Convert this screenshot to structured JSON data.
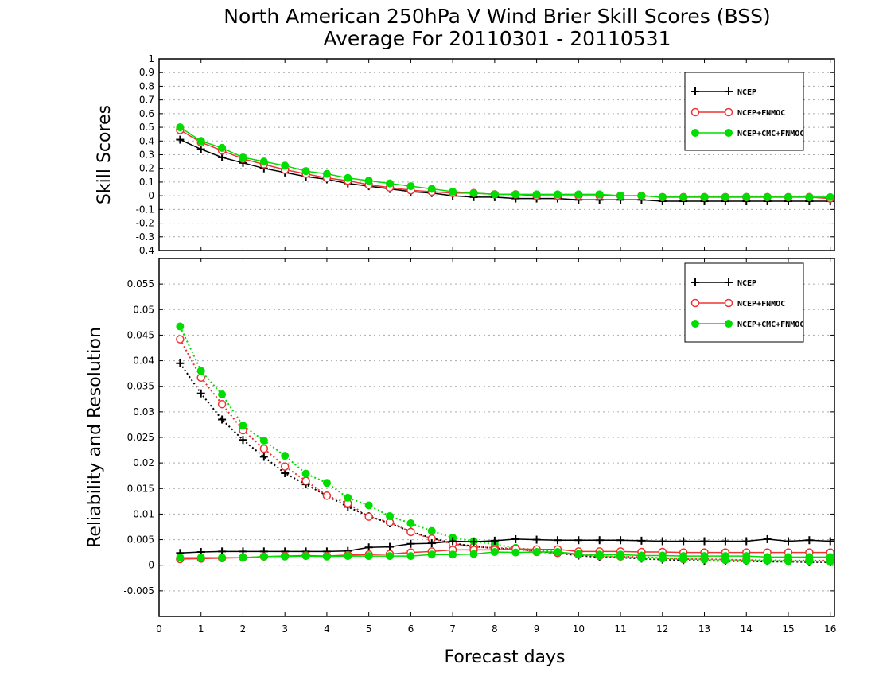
{
  "title_line1": "North American 250hPa V Wind Brier Skill Scores (BSS)",
  "title_line2": "Average For 20110301 - 20110531",
  "colors": {
    "NCEP": "#000000",
    "NCEP+FNMOC": "#ee3333",
    "NCEP+CMC+FNMOC": "#00dd00",
    "grid": "#aaaaaa"
  },
  "chart_data": [
    {
      "type": "line",
      "ylabel": "Skill Scores",
      "xlabel": "",
      "xlim": [
        0,
        16.1
      ],
      "ylim": [
        -0.4,
        1
      ],
      "xticks": [
        "0",
        "1",
        "2",
        "3",
        "4",
        "5",
        "6",
        "7",
        "8",
        "9",
        "10",
        "11",
        "12",
        "13",
        "14",
        "15",
        "16"
      ],
      "yticks": [
        "1",
        "0.9",
        "0.8",
        "0.7",
        "0.6",
        "0.5",
        "0.4",
        "0.3",
        "0.2",
        "0.1",
        "0",
        "-0.1",
        "-0.2",
        "-0.3",
        "-0.4"
      ],
      "grid": true,
      "legend_position": "top-right",
      "legend": [
        "NCEP",
        "NCEP+FNMOC",
        "NCEP+CMC+FNMOC"
      ],
      "x": [
        0.5,
        1,
        1.5,
        2,
        2.5,
        3,
        3.5,
        4,
        4.5,
        5,
        5.5,
        6,
        6.5,
        7,
        7.5,
        8,
        8.5,
        9,
        9.5,
        10,
        10.5,
        11,
        11.5,
        12,
        12.5,
        13,
        13.5,
        14,
        14.5,
        15,
        15.5,
        16
      ],
      "series": [
        {
          "name": "NCEP",
          "marker": "plus",
          "style": "solid",
          "values": [
            0.41,
            0.34,
            0.28,
            0.24,
            0.2,
            0.17,
            0.14,
            0.12,
            0.09,
            0.07,
            0.05,
            0.03,
            0.02,
            0.0,
            -0.01,
            -0.01,
            -0.02,
            -0.02,
            -0.02,
            -0.03,
            -0.03,
            -0.03,
            -0.03,
            -0.04,
            -0.04,
            -0.04,
            -0.04,
            -0.04,
            -0.04,
            -0.04,
            -0.04,
            -0.04
          ]
        },
        {
          "name": "NCEP+FNMOC",
          "marker": "open-circle",
          "style": "solid",
          "values": [
            0.48,
            0.39,
            0.33,
            0.27,
            0.23,
            0.19,
            0.16,
            0.13,
            0.11,
            0.08,
            0.06,
            0.04,
            0.03,
            0.02,
            0.02,
            0.01,
            0.01,
            0.0,
            0.0,
            0.0,
            0.0,
            0.0,
            0.0,
            -0.01,
            -0.01,
            -0.01,
            -0.01,
            -0.01,
            -0.01,
            -0.01,
            -0.01,
            -0.02
          ]
        },
        {
          "name": "NCEP+CMC+FNMOC",
          "marker": "filled-circle",
          "style": "solid",
          "values": [
            0.5,
            0.4,
            0.35,
            0.28,
            0.25,
            0.22,
            0.18,
            0.16,
            0.13,
            0.11,
            0.09,
            0.07,
            0.05,
            0.03,
            0.02,
            0.01,
            0.01,
            0.01,
            0.01,
            0.01,
            0.01,
            0.0,
            0.0,
            -0.01,
            -0.01,
            -0.01,
            -0.01,
            -0.01,
            -0.01,
            -0.01,
            -0.01,
            -0.01
          ]
        }
      ]
    },
    {
      "type": "line",
      "ylabel": "Reliability and Resolution",
      "xlabel": "Forecast days",
      "xlim": [
        0,
        16.1
      ],
      "ylim": [
        -0.01,
        0.06
      ],
      "xticks": [
        "0",
        "1",
        "2",
        "3",
        "4",
        "5",
        "6",
        "7",
        "8",
        "9",
        "10",
        "11",
        "12",
        "13",
        "14",
        "15",
        "16"
      ],
      "yticks": [
        "0.055",
        "0.05",
        "0.045",
        "0.04",
        "0.035",
        "0.03",
        "0.025",
        "0.02",
        "0.015",
        "0.01",
        "0.005",
        "0",
        "-0.005"
      ],
      "grid": true,
      "legend_position": "top-right",
      "legend": [
        "NCEP",
        "NCEP+FNMOC",
        "NCEP+CMC+FNMOC"
      ],
      "x": [
        0.5,
        1,
        1.5,
        2,
        2.5,
        3,
        3.5,
        4,
        4.5,
        5,
        5.5,
        6,
        6.5,
        7,
        7.5,
        8,
        8.5,
        9,
        9.5,
        10,
        10.5,
        11,
        11.5,
        12,
        12.5,
        13,
        13.5,
        14,
        14.5,
        15,
        15.5,
        16
      ],
      "series": [
        {
          "name": "NCEP",
          "group": "reliability",
          "marker": "plus",
          "style": "solid",
          "values": [
            0.0024,
            0.0026,
            0.0027,
            0.0027,
            0.0027,
            0.0027,
            0.0027,
            0.0027,
            0.0028,
            0.0035,
            0.0036,
            0.0042,
            0.0043,
            0.0047,
            0.0046,
            0.0048,
            0.0051,
            0.005,
            0.0049,
            0.0049,
            0.0049,
            0.0049,
            0.0048,
            0.0047,
            0.0047,
            0.0047,
            0.0047,
            0.0047,
            0.0051,
            0.0047,
            0.0049,
            0.0047
          ]
        },
        {
          "name": "NCEP",
          "group": "resolution",
          "marker": "plus",
          "style": "dotted",
          "values": [
            0.0395,
            0.0336,
            0.0285,
            0.0245,
            0.0212,
            0.018,
            0.0158,
            0.0136,
            0.0114,
            0.0096,
            0.0082,
            0.0066,
            0.0053,
            0.0043,
            0.0037,
            0.0033,
            0.0031,
            0.0028,
            0.0024,
            0.0019,
            0.0016,
            0.0015,
            0.0013,
            0.0011,
            0.001,
            0.0009,
            0.0008,
            0.0008,
            0.0007,
            0.0007,
            0.0006,
            0.0006
          ]
        },
        {
          "name": "NCEP+FNMOC",
          "group": "reliability",
          "marker": "open-circle",
          "style": "solid",
          "values": [
            0.0012,
            0.0013,
            0.0014,
            0.0015,
            0.0017,
            0.0018,
            0.0019,
            0.0018,
            0.002,
            0.0021,
            0.0022,
            0.0025,
            0.0027,
            0.003,
            0.003,
            0.003,
            0.0032,
            0.0031,
            0.0031,
            0.0027,
            0.0027,
            0.0027,
            0.0026,
            0.0026,
            0.0025,
            0.0025,
            0.0025,
            0.0025,
            0.0025,
            0.0025,
            0.0025,
            0.0025
          ]
        },
        {
          "name": "NCEP+FNMOC",
          "group": "resolution",
          "marker": "open-circle",
          "style": "dotted",
          "values": [
            0.0442,
            0.0367,
            0.0315,
            0.0264,
            0.0228,
            0.0193,
            0.0165,
            0.0136,
            0.0121,
            0.0095,
            0.0084,
            0.0065,
            0.0052,
            0.0042,
            0.0036,
            0.0034,
            0.0033,
            0.0026,
            0.0024,
            0.0021,
            0.0018,
            0.0017,
            0.0016,
            0.0014,
            0.0012,
            0.0012,
            0.0011,
            0.001,
            0.001,
            0.0009,
            0.0009,
            0.0009
          ]
        },
        {
          "name": "NCEP+CMC+FNMOC",
          "group": "reliability",
          "marker": "filled-circle",
          "style": "solid",
          "values": [
            0.0015,
            0.0015,
            0.0015,
            0.0015,
            0.0017,
            0.0017,
            0.0018,
            0.0017,
            0.0018,
            0.0018,
            0.0018,
            0.0018,
            0.0021,
            0.0021,
            0.0022,
            0.0026,
            0.0025,
            0.0026,
            0.0026,
            0.0022,
            0.0021,
            0.0021,
            0.0019,
            0.0019,
            0.0018,
            0.0018,
            0.0018,
            0.0018,
            0.0016,
            0.0016,
            0.0016,
            0.0016
          ]
        },
        {
          "name": "NCEP+CMC+FNMOC",
          "group": "resolution",
          "marker": "filled-circle",
          "style": "dotted",
          "values": [
            0.0467,
            0.038,
            0.0334,
            0.0273,
            0.0244,
            0.0214,
            0.0179,
            0.0161,
            0.0132,
            0.0117,
            0.0096,
            0.0082,
            0.0067,
            0.0054,
            0.0047,
            0.0041,
            0.0034,
            0.003,
            0.0026,
            0.0021,
            0.0018,
            0.0017,
            0.0014,
            0.0013,
            0.0012,
            0.0011,
            0.001,
            0.0009,
            0.0009,
            0.0008,
            0.0008,
            0.0007
          ]
        }
      ]
    }
  ]
}
